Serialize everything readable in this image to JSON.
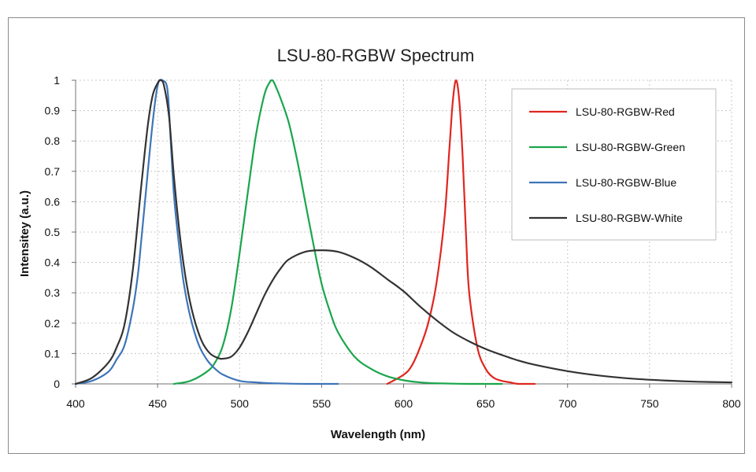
{
  "chart_data": {
    "type": "line",
    "title": "LSU-80-RGBW Spectrum",
    "xlabel": "Wavelength (nm)",
    "ylabel": "Intensitey (a.u.)",
    "xlim": [
      400,
      800
    ],
    "ylim": [
      0,
      1
    ],
    "xticks": [
      400,
      450,
      500,
      550,
      600,
      650,
      700,
      750,
      800
    ],
    "yticks": [
      0,
      0.1,
      0.2,
      0.3,
      0.4,
      0.5,
      0.6,
      0.7,
      0.8,
      0.9,
      1
    ],
    "grid": true,
    "legend_position": "top-right",
    "series": [
      {
        "name": "LSU-80-RGBW-Red",
        "color": "#e0261f",
        "x": [
          590,
          600,
          605,
          610,
          615,
          620,
          625,
          628,
          630,
          632,
          634,
          636,
          638,
          640,
          645,
          650,
          655,
          660,
          665,
          670,
          680
        ],
        "y": [
          0.0,
          0.03,
          0.06,
          0.12,
          0.2,
          0.33,
          0.55,
          0.78,
          0.93,
          1.0,
          0.93,
          0.75,
          0.5,
          0.3,
          0.12,
          0.05,
          0.02,
          0.01,
          0.005,
          0.0,
          0.0
        ]
      },
      {
        "name": "LSU-80-RGBW-Green",
        "color": "#1aa64b",
        "x": [
          460,
          470,
          480,
          485,
          490,
          495,
          500,
          505,
          510,
          515,
          518,
          520,
          522,
          525,
          530,
          535,
          540,
          545,
          550,
          555,
          560,
          570,
          580,
          590,
          600,
          610,
          620,
          640,
          660
        ],
        "y": [
          0.0,
          0.01,
          0.04,
          0.07,
          0.13,
          0.25,
          0.43,
          0.63,
          0.82,
          0.95,
          0.99,
          1.0,
          0.98,
          0.94,
          0.86,
          0.74,
          0.6,
          0.46,
          0.33,
          0.24,
          0.17,
          0.09,
          0.05,
          0.025,
          0.012,
          0.005,
          0.002,
          0.0,
          0.0
        ]
      },
      {
        "name": "LSU-80-RGBW-Blue",
        "color": "#3e75b8",
        "x": [
          400,
          410,
          420,
          425,
          430,
          435,
          438,
          440,
          443,
          446,
          449,
          451,
          453,
          456,
          458,
          460,
          463,
          466,
          470,
          475,
          480,
          485,
          490,
          500,
          510,
          520,
          540,
          560
        ],
        "y": [
          0.0,
          0.01,
          0.04,
          0.08,
          0.13,
          0.25,
          0.36,
          0.47,
          0.64,
          0.81,
          0.95,
          1.0,
          1.0,
          0.97,
          0.8,
          0.62,
          0.46,
          0.33,
          0.22,
          0.13,
          0.08,
          0.05,
          0.03,
          0.01,
          0.005,
          0.002,
          0.0,
          0.0
        ]
      },
      {
        "name": "LSU-80-RGBW-White",
        "color": "#333333",
        "x": [
          400,
          410,
          420,
          425,
          430,
          435,
          440,
          444,
          447,
          450,
          452,
          454,
          457,
          460,
          464,
          468,
          472,
          477,
          482,
          487,
          490,
          495,
          500,
          505,
          510,
          515,
          520,
          525,
          530,
          540,
          550,
          560,
          570,
          580,
          590,
          600,
          610,
          620,
          630,
          640,
          650,
          660,
          670,
          680,
          700,
          720,
          740,
          760,
          780,
          800
        ],
        "y": [
          0.0,
          0.02,
          0.07,
          0.12,
          0.2,
          0.38,
          0.65,
          0.85,
          0.95,
          0.99,
          1.0,
          0.98,
          0.88,
          0.68,
          0.47,
          0.32,
          0.22,
          0.14,
          0.1,
          0.085,
          0.083,
          0.09,
          0.12,
          0.17,
          0.23,
          0.29,
          0.34,
          0.38,
          0.41,
          0.435,
          0.44,
          0.435,
          0.415,
          0.385,
          0.345,
          0.305,
          0.255,
          0.21,
          0.17,
          0.14,
          0.115,
          0.095,
          0.077,
          0.063,
          0.042,
          0.027,
          0.017,
          0.011,
          0.007,
          0.005
        ]
      }
    ]
  }
}
